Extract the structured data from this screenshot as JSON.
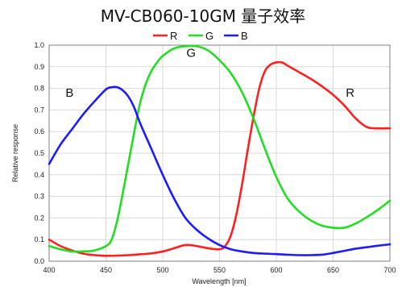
{
  "chart_data": {
    "type": "line",
    "title": "MV-CB060-10GM 量子效率",
    "xlabel": "Wavelength [nm]",
    "ylabel": "Relative response",
    "xlim": [
      400,
      700
    ],
    "ylim": [
      0,
      1.0
    ],
    "xticks": [
      400,
      450,
      500,
      550,
      600,
      650,
      700
    ],
    "yticks": [
      0.0,
      0.1,
      0.2,
      0.3,
      0.4,
      0.5,
      0.6,
      0.7,
      0.8,
      0.9,
      1.0
    ],
    "xtick_labels": [
      "400",
      "450",
      "500",
      "550",
      "600",
      "650",
      "700"
    ],
    "ytick_labels": [
      "0.0",
      "0.1",
      "0.2",
      "0.3",
      "0.4",
      "0.5",
      "0.6",
      "0.7",
      "0.8",
      "0.9",
      "1.0"
    ],
    "grid": true,
    "legend_position": "top-center",
    "series": [
      {
        "name": "R",
        "color": "#ff2020",
        "x": [
          400,
          410,
          420,
          430,
          440,
          450,
          460,
          470,
          480,
          490,
          500,
          510,
          520,
          530,
          540,
          550,
          555,
          560,
          565,
          570,
          575,
          580,
          585,
          590,
          595,
          600,
          605,
          610,
          620,
          630,
          640,
          650,
          660,
          670,
          680,
          690,
          700
        ],
        "y": [
          0.1,
          0.07,
          0.05,
          0.035,
          0.028,
          0.025,
          0.026,
          0.028,
          0.032,
          0.036,
          0.045,
          0.06,
          0.075,
          0.07,
          0.06,
          0.055,
          0.07,
          0.12,
          0.22,
          0.36,
          0.52,
          0.67,
          0.8,
          0.88,
          0.91,
          0.92,
          0.92,
          0.905,
          0.875,
          0.845,
          0.81,
          0.77,
          0.72,
          0.66,
          0.62,
          0.615,
          0.615
        ]
      },
      {
        "name": "G",
        "color": "#22dd22",
        "x": [
          400,
          410,
          420,
          430,
          440,
          450,
          455,
          460,
          465,
          470,
          475,
          480,
          485,
          490,
          495,
          500,
          510,
          520,
          530,
          540,
          550,
          560,
          570,
          580,
          590,
          600,
          610,
          620,
          630,
          640,
          650,
          660,
          670,
          680,
          690,
          700
        ],
        "y": [
          0.07,
          0.055,
          0.045,
          0.045,
          0.05,
          0.07,
          0.1,
          0.19,
          0.32,
          0.46,
          0.6,
          0.73,
          0.82,
          0.88,
          0.92,
          0.95,
          0.985,
          0.995,
          0.995,
          0.975,
          0.93,
          0.87,
          0.78,
          0.66,
          0.52,
          0.39,
          0.29,
          0.23,
          0.19,
          0.165,
          0.155,
          0.155,
          0.175,
          0.205,
          0.24,
          0.28
        ]
      },
      {
        "name": "B",
        "color": "#1c1cff",
        "x": [
          400,
          410,
          420,
          430,
          440,
          450,
          455,
          460,
          465,
          470,
          475,
          480,
          490,
          500,
          510,
          520,
          530,
          540,
          550,
          560,
          570,
          580,
          590,
          600,
          610,
          620,
          630,
          640,
          650,
          660,
          670,
          680,
          690,
          700
        ],
        "y": [
          0.45,
          0.54,
          0.61,
          0.68,
          0.74,
          0.795,
          0.805,
          0.805,
          0.79,
          0.76,
          0.71,
          0.64,
          0.52,
          0.4,
          0.29,
          0.2,
          0.145,
          0.105,
          0.075,
          0.055,
          0.045,
          0.038,
          0.035,
          0.033,
          0.03,
          0.028,
          0.028,
          0.03,
          0.038,
          0.048,
          0.058,
          0.065,
          0.072,
          0.078
        ]
      }
    ],
    "annotations": [
      {
        "text": "B",
        "x": 418,
        "y": 0.78
      },
      {
        "text": "G",
        "x": 525,
        "y": 0.965
      },
      {
        "text": "R",
        "x": 665,
        "y": 0.78
      }
    ]
  }
}
